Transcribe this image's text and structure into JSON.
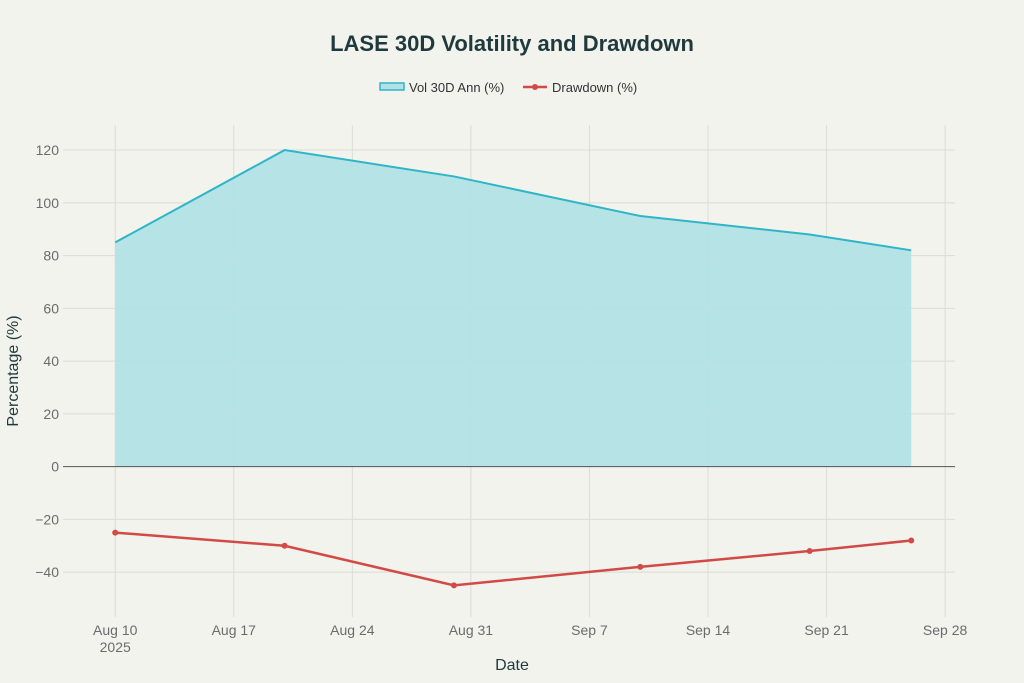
{
  "chart_data": {
    "type": "area+line",
    "title": "LASE 30D Volatility and Drawdown",
    "xlabel": "Date",
    "ylabel": "Percentage (%)",
    "x": [
      "2025-08-10",
      "2025-08-20",
      "2025-08-30",
      "2025-09-10",
      "2025-09-20",
      "2025-09-26"
    ],
    "series": [
      {
        "name": "Vol 30D Ann (%)",
        "type": "area",
        "color": "#2fb5c8",
        "fill": "#b2e2e5",
        "values": [
          85,
          120,
          110,
          95,
          88,
          82
        ]
      },
      {
        "name": "Drawdown (%)",
        "type": "line+markers",
        "color": "#d24a46",
        "values": [
          -25,
          -30,
          -45,
          -38,
          -32,
          -28
        ]
      }
    ],
    "xlim": [
      "2025-08-06T22:00",
      "2025-09-28T14:00"
    ],
    "ylim": [
      -57,
      129.5
    ],
    "yticks": [
      -40,
      -20,
      0,
      20,
      40,
      60,
      80,
      100,
      120
    ],
    "ytick_labels": [
      "−40",
      "−20",
      "0",
      "20",
      "40",
      "60",
      "80",
      "100",
      "120"
    ],
    "xticks": [
      "2025-08-10",
      "2025-08-17",
      "2025-08-24",
      "2025-08-31",
      "2025-09-07",
      "2025-09-14",
      "2025-09-21",
      "2025-09-28"
    ],
    "xtick_labels": [
      "Aug 10",
      "Aug 17",
      "Aug 24",
      "Aug 31",
      "Sep 7",
      "Sep 14",
      "Sep 21",
      "Sep 28"
    ],
    "xtick_sublabel": "2025",
    "grid": true,
    "legend": "top-center"
  }
}
